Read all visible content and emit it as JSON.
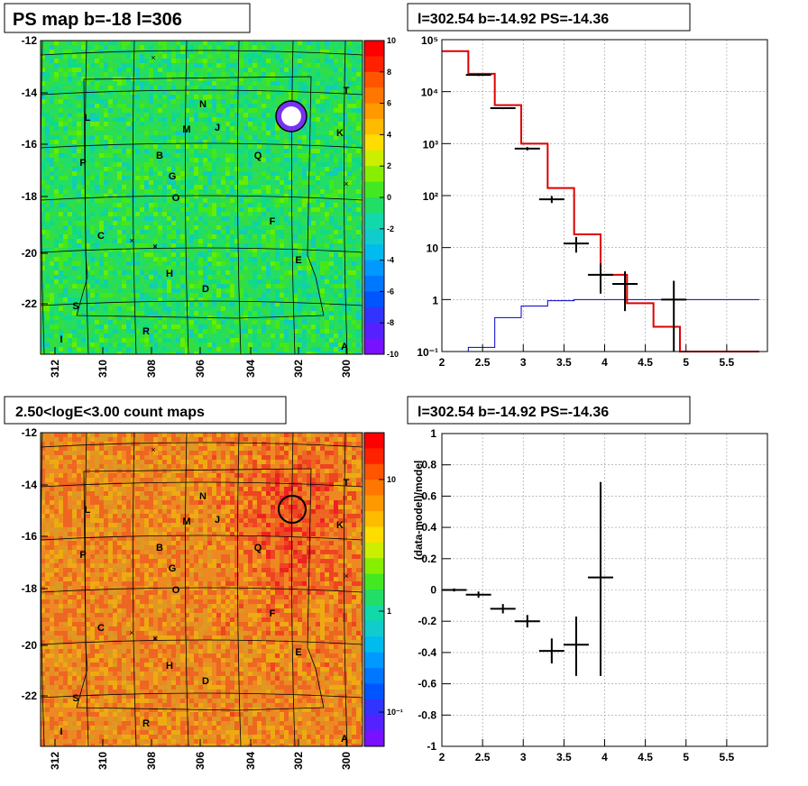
{
  "panels": [
    {
      "title": "PS map b=-18 l=306"
    },
    {
      "title": "l=302.54 b=-14.92 PS=-14.36"
    },
    {
      "title": "2.50<logE<3.00 count maps"
    },
    {
      "title": "l=302.54 b=-14.92 PS=-14.36"
    }
  ],
  "colors": {
    "map1": "#33dd55",
    "map2": "#ee8822",
    "model": "#dd0000",
    "bkg": "#0000cc",
    "data": "#000000"
  },
  "map_axes": {
    "x_ticks": [
      "312",
      "310",
      "308",
      "306",
      "304",
      "302",
      "300"
    ],
    "y_ticks": [
      "-12",
      "-14",
      "-16",
      "-18",
      "-20",
      "-22"
    ]
  },
  "colorbar1": {
    "ticks": [
      "10",
      "8",
      "6",
      "4",
      "2",
      "0",
      "-2",
      "-4",
      "-6",
      "-8",
      "-10"
    ]
  },
  "colorbar2": {
    "ticks": [
      "10",
      "1",
      "10⁻¹"
    ]
  },
  "sources": [
    {
      "label": "N"
    },
    {
      "label": "T"
    },
    {
      "label": "L"
    },
    {
      "label": "M"
    },
    {
      "label": "J"
    },
    {
      "label": "K"
    },
    {
      "label": "P"
    },
    {
      "label": "B"
    },
    {
      "label": "Q"
    },
    {
      "label": "G"
    },
    {
      "label": "O"
    },
    {
      "label": "F"
    },
    {
      "label": "C"
    },
    {
      "label": "E"
    },
    {
      "label": "H"
    },
    {
      "label": "D"
    },
    {
      "label": "S"
    },
    {
      "label": "R"
    },
    {
      "label": "I"
    },
    {
      "label": "A"
    }
  ],
  "chart_data": [
    {
      "type": "line",
      "title": "l=302.54 b=-14.92 PS=-14.36",
      "xlim": [
        2,
        6
      ],
      "ylim": [
        0.1,
        100000
      ],
      "ylog": true,
      "x_ticks": [
        "2",
        "2.5",
        "3",
        "3.5",
        "4",
        "4.5",
        "5",
        "5.5"
      ],
      "y_ticks": [
        "10⁵",
        "10⁴",
        "10³",
        "10²",
        "10",
        "1",
        "10⁻¹"
      ],
      "grid": true,
      "bin_edges": [
        2.0,
        2.325,
        2.65,
        2.975,
        3.3,
        3.625,
        3.95,
        4.275,
        4.6,
        4.925,
        5.25,
        5.575,
        5.9
      ],
      "model": [
        60000,
        22000,
        5500,
        1000,
        140,
        18,
        3,
        0.85,
        0.3,
        0.1,
        0.1,
        0.1
      ],
      "background": [
        0.05,
        0.12,
        0.45,
        0.75,
        0.95,
        1.0,
        1.0,
        1.0,
        1.0,
        1.0,
        1.0,
        1.0
      ],
      "data": [
        {
          "x": 2.45,
          "y": 21000,
          "lo": 20000,
          "hi": 22000
        },
        {
          "x": 2.75,
          "y": 4800,
          "lo": 4600,
          "hi": 5000
        },
        {
          "x": 3.05,
          "y": 800,
          "lo": 740,
          "hi": 860
        },
        {
          "x": 3.35,
          "y": 85,
          "lo": 72,
          "hi": 98
        },
        {
          "x": 3.65,
          "y": 12,
          "lo": 8,
          "hi": 16
        },
        {
          "x": 3.95,
          "y": 3,
          "lo": 1.3,
          "hi": 5
        },
        {
          "x": 4.25,
          "y": 2,
          "lo": 0.6,
          "hi": 3.5
        },
        {
          "x": 4.85,
          "y": 1,
          "lo": 0.1,
          "hi": 2.3
        }
      ]
    },
    {
      "type": "scatter",
      "title": "l=302.54 b=-14.92 PS=-14.36",
      "ylabel": "(data-model)/model",
      "xlim": [
        2,
        6
      ],
      "ylim": [
        -1,
        1
      ],
      "x_ticks": [
        "2",
        "2.5",
        "3",
        "3.5",
        "4",
        "4.5",
        "5",
        "5.5"
      ],
      "y_ticks": [
        "1",
        "0.8",
        "0.6",
        "0.4",
        "0.2",
        "0",
        "-0.2",
        "-0.4",
        "-0.6",
        "-0.8",
        "-1"
      ],
      "grid": true,
      "data": [
        {
          "x": 2.15,
          "y": 0.0,
          "lo": -0.01,
          "hi": 0.01
        },
        {
          "x": 2.45,
          "y": -0.03,
          "lo": -0.05,
          "hi": -0.01
        },
        {
          "x": 2.75,
          "y": -0.12,
          "lo": -0.15,
          "hi": -0.09
        },
        {
          "x": 3.05,
          "y": -0.2,
          "lo": -0.24,
          "hi": -0.16
        },
        {
          "x": 3.35,
          "y": -0.39,
          "lo": -0.47,
          "hi": -0.31
        },
        {
          "x": 3.65,
          "y": -0.35,
          "lo": -0.55,
          "hi": -0.17
        },
        {
          "x": 3.95,
          "y": 0.08,
          "lo": -0.55,
          "hi": 0.69
        }
      ]
    }
  ]
}
